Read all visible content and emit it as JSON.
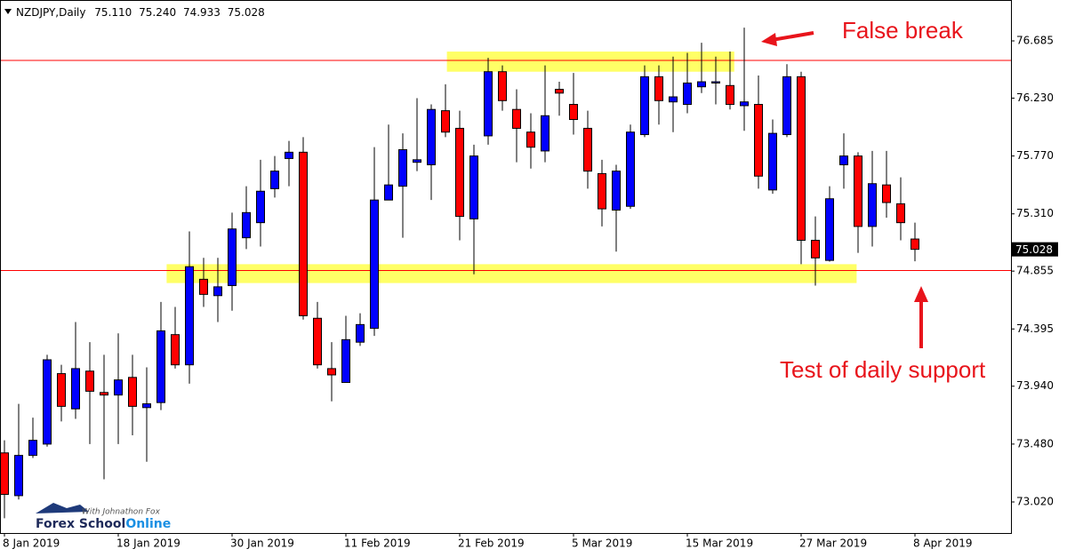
{
  "chart_data": {
    "type": "candlestick",
    "title": "NZDJPY,Daily",
    "info": [
      "75.110",
      "75.240",
      "74.933",
      "75.028"
    ],
    "categories": [
      "8 Jan 2019",
      null,
      null,
      null,
      null,
      null,
      null,
      null,
      "18 Jan 2019",
      null,
      null,
      null,
      null,
      null,
      null,
      null,
      "30 Jan 2019",
      null,
      null,
      null,
      null,
      null,
      null,
      null,
      "11 Feb 2019",
      null,
      null,
      null,
      null,
      null,
      null,
      null,
      "21 Feb 2019",
      null,
      null,
      null,
      null,
      null,
      null,
      null,
      "5 Mar 2019",
      null,
      null,
      null,
      null,
      null,
      null,
      null,
      "15 Mar 2019",
      null,
      null,
      null,
      null,
      null,
      null,
      null,
      "27 Mar 2019",
      null,
      null,
      null,
      null,
      null,
      null,
      null,
      "8 Apr 2019"
    ],
    "open": [
      73.41,
      73.07,
      73.39,
      73.48,
      74.04,
      73.76,
      74.06,
      73.89,
      73.87,
      74.01,
      73.77,
      73.81,
      74.35,
      74.11,
      74.79,
      74.66,
      74.74,
      75.12,
      75.24,
      75.51,
      75.75,
      75.8,
      74.48,
      74.08,
      73.97,
      74.29,
      74.4,
      75.42,
      75.53,
      75.72,
      75.7,
      76.13,
      75.99,
      75.27,
      75.93,
      76.44,
      76.14,
      75.96,
      75.81,
      76.3,
      76.18,
      75.99,
      75.63,
      75.34,
      75.37,
      75.94,
      76.4,
      76.2,
      76.18,
      76.32,
      76.35,
      76.33,
      76.17,
      76.18,
      75.5,
      75.94,
      76.4,
      75.1,
      74.94,
      75.7,
      75.77,
      75.21,
      75.54,
      75.39,
      75.11
    ],
    "high": [
      73.51,
      73.8,
      73.69,
      74.19,
      74.11,
      74.45,
      74.29,
      74.19,
      74.36,
      74.19,
      74.09,
      74.61,
      74.57,
      75.17,
      74.96,
      74.96,
      75.32,
      75.53,
      75.74,
      75.77,
      75.89,
      75.92,
      74.61,
      74.29,
      74.5,
      74.52,
      75.84,
      76.02,
      75.95,
      76.23,
      76.18,
      76.34,
      76.13,
      75.86,
      76.55,
      76.49,
      76.3,
      76.11,
      76.49,
      76.36,
      76.43,
      76.13,
      75.74,
      75.7,
      76.02,
      76.49,
      76.49,
      76.56,
      76.59,
      76.67,
      76.56,
      76.6,
      76.79,
      76.41,
      76.06,
      76.5,
      76.44,
      75.29,
      75.53,
      75.95,
      75.8,
      75.81,
      75.81,
      75.6,
      75.24
    ],
    "low": [
      72.89,
      73.04,
      73.37,
      73.46,
      73.66,
      73.68,
      73.48,
      73.2,
      73.48,
      73.55,
      73.34,
      73.75,
      74.08,
      73.96,
      74.57,
      74.45,
      74.54,
      75.03,
      75.05,
      75.44,
      75.53,
      74.47,
      74.08,
      73.82,
      73.97,
      74.26,
      74.34,
      75.42,
      75.12,
      75.65,
      75.42,
      75.92,
      75.1,
      74.83,
      75.86,
      76.13,
      75.72,
      75.67,
      75.72,
      76.09,
      75.94,
      75.51,
      75.21,
      75.01,
      75.35,
      75.92,
      76.02,
      75.96,
      76.11,
      76.27,
      76.18,
      76.14,
      75.97,
      75.51,
      75.47,
      75.92,
      74.91,
      74.74,
      74.93,
      75.51,
      75.0,
      75.05,
      75.28,
      75.1,
      74.933
    ],
    "close": [
      73.08,
      73.39,
      73.51,
      74.15,
      73.78,
      74.08,
      73.9,
      73.87,
      73.99,
      73.78,
      73.8,
      74.38,
      74.11,
      74.89,
      74.67,
      74.73,
      75.19,
      75.32,
      75.49,
      75.65,
      75.8,
      74.5,
      74.11,
      74.03,
      74.31,
      74.43,
      75.42,
      75.54,
      75.82,
      75.74,
      76.14,
      75.96,
      75.29,
      75.77,
      76.44,
      76.21,
      75.99,
      75.84,
      76.09,
      76.27,
      76.06,
      75.65,
      75.35,
      75.65,
      75.96,
      76.4,
      76.21,
      76.24,
      76.35,
      76.36,
      76.36,
      76.18,
      76.2,
      75.61,
      75.95,
      76.4,
      75.1,
      74.96,
      75.43,
      75.77,
      75.21,
      75.55,
      75.4,
      75.24,
      75.028
    ],
    "up_color": "#0000ff",
    "down_color": "#ff0000",
    "ylim": [
      72.773,
      77.01
    ],
    "yticks": [
      {
        "value": 73.02,
        "label": "73.020"
      },
      {
        "value": 73.48,
        "label": "73.480"
      },
      {
        "value": 73.94,
        "label": "73.940"
      },
      74.395,
      74.855,
      {
        "value": 75.31,
        "label": "75.310"
      },
      {
        "value": 75.77,
        "label": "75.770"
      },
      {
        "value": 76.23,
        "label": "76.230"
      },
      76.685
    ],
    "hlines": [
      {
        "value": 76.53,
        "color": "#ff0000"
      },
      {
        "value": 74.86,
        "color": "#ff0000"
      }
    ],
    "zones": [
      {
        "y": [
          76.44,
          76.6
        ],
        "x": [
          31.1,
          51.3
        ],
        "color": "#ffff66"
      },
      {
        "y": [
          74.76,
          74.91
        ],
        "x": [
          11.4,
          59.9
        ],
        "color": "#ffff66"
      }
    ],
    "annotations": [
      "False break",
      "Test of daily support"
    ],
    "logo": {
      "tagline": "With Johnathon Fox",
      "name": "Forex School",
      "name2": "Online"
    }
  }
}
